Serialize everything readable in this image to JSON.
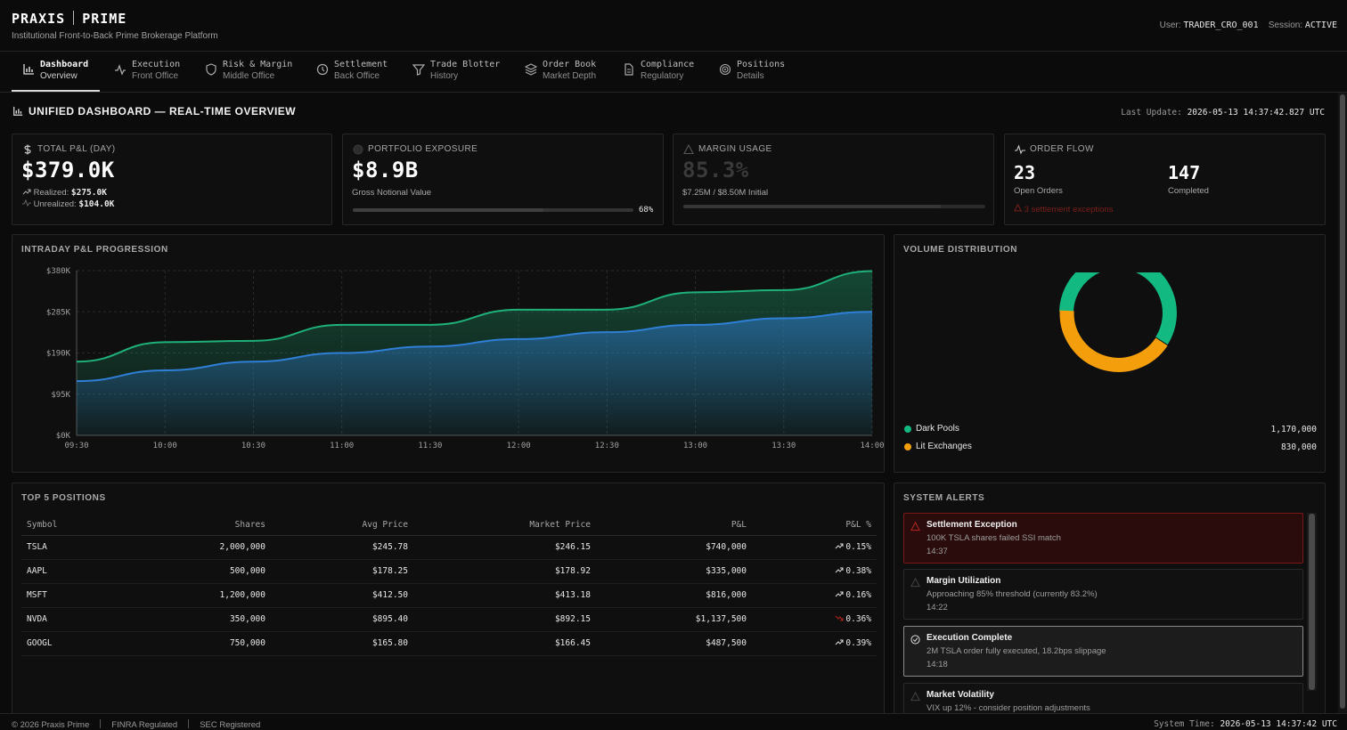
{
  "app": {
    "brand_left": "PRAXIS",
    "brand_right": "PRIME",
    "tagline": "Institutional Front-to-Back Prime Brokerage Platform"
  },
  "user": {
    "user_label": "User:",
    "user_id": "TRADER_CRO_001",
    "session_label": "Session:",
    "session_status": "ACTIVE"
  },
  "nav": [
    {
      "title": "Dashboard",
      "subtitle": "Overview",
      "icon": "bar-chart-icon",
      "active": true
    },
    {
      "title": "Execution",
      "subtitle": "Front Office",
      "icon": "activity-icon"
    },
    {
      "title": "Risk & Margin",
      "subtitle": "Middle Office",
      "icon": "shield-icon"
    },
    {
      "title": "Settlement",
      "subtitle": "Back Office",
      "icon": "clock-icon"
    },
    {
      "title": "Trade Blotter",
      "subtitle": "History",
      "icon": "filter-icon"
    },
    {
      "title": "Order Book",
      "subtitle": "Market Depth",
      "icon": "layers-icon"
    },
    {
      "title": "Compliance",
      "subtitle": "Regulatory",
      "icon": "document-icon"
    },
    {
      "title": "Positions",
      "subtitle": "Details",
      "icon": "target-icon"
    }
  ],
  "dashboard": {
    "title": "UNIFIED DASHBOARD — REAL-TIME OVERVIEW",
    "last_update_label": "Last Update:",
    "last_update": "2026-05-13 14:37:42.827 UTC"
  },
  "kpis": {
    "pnl": {
      "label": "TOTAL P&L (DAY)",
      "value": "$379.0K",
      "realized_label": "Realized:",
      "realized": "$275.0K",
      "unrealized_label": "Unrealized:",
      "unrealized": "$104.0K",
      "icon": "dollar-icon"
    },
    "exposure": {
      "label": "PORTFOLIO EXPOSURE",
      "value": "$8.9B",
      "sub": "Gross Notional Value",
      "pct_label": "68%",
      "pct": 0.68,
      "icon": "globe-icon"
    },
    "margin": {
      "label": "MARGIN USAGE",
      "value": "85.3%",
      "sub": "$7.25M / $8.50M Initial",
      "pct": 0.853,
      "icon": "warning-icon"
    },
    "orderflow": {
      "label": "ORDER FLOW",
      "open": "23",
      "open_label": "Open Orders",
      "completed": "147",
      "completed_label": "Completed",
      "exceptions": "3 settlement exceptions",
      "icon": "activity-icon"
    }
  },
  "chart_data": [
    {
      "type": "area",
      "title": "INTRADAY P&L PROGRESSION",
      "x": [
        "09:30",
        "10:00",
        "10:30",
        "11:00",
        "11:30",
        "12:00",
        "12:30",
        "13:00",
        "13:30",
        "14:00"
      ],
      "ytick_labels": [
        "$380K",
        "$285K",
        "$190K",
        "$95K",
        "$0K"
      ],
      "ylim": [
        0,
        380000
      ],
      "grid": true,
      "series": [
        {
          "values": [
            170000,
            215000,
            218000,
            255000,
            255000,
            290000,
            290000,
            330000,
            335000,
            379000
          ],
          "color": "#1fb07a"
        },
        {
          "values": [
            125000,
            150000,
            170000,
            190000,
            205000,
            222000,
            238000,
            255000,
            270000,
            285000
          ],
          "color": "#2f7fd6"
        }
      ]
    },
    {
      "type": "pie",
      "title": "VOLUME DISTRIBUTION",
      "categories": [
        "Dark Pools",
        "Lit Exchanges"
      ],
      "values": [
        1170000,
        830000
      ],
      "value_labels": [
        "1,170,000",
        "830,000"
      ],
      "colors": [
        "#12b981",
        "#f59e0b"
      ]
    }
  ],
  "positions": {
    "title": "TOP 5 POSITIONS",
    "columns": [
      "Symbol",
      "Shares",
      "Avg Price",
      "Market Price",
      "P&L",
      "P&L %"
    ],
    "rows": [
      {
        "symbol": "TSLA",
        "shares": "2,000,000",
        "avg": "$245.78",
        "mkt": "$246.15",
        "pnl": "$740,000",
        "pct": "0.15%",
        "neg": false
      },
      {
        "symbol": "AAPL",
        "shares": "500,000",
        "avg": "$178.25",
        "mkt": "$178.92",
        "pnl": "$335,000",
        "pct": "0.38%",
        "neg": false
      },
      {
        "symbol": "MSFT",
        "shares": "1,200,000",
        "avg": "$412.50",
        "mkt": "$413.18",
        "pnl": "$816,000",
        "pct": "0.16%",
        "neg": false
      },
      {
        "symbol": "NVDA",
        "shares": "350,000",
        "avg": "$895.40",
        "mkt": "$892.15",
        "pnl": "$1,137,500",
        "pct": "0.36%",
        "neg": true
      },
      {
        "symbol": "GOOGL",
        "shares": "750,000",
        "avg": "$165.80",
        "mkt": "$166.45",
        "pnl": "$487,500",
        "pct": "0.39%",
        "neg": false
      }
    ]
  },
  "alerts": {
    "title": "SYSTEM ALERTS",
    "items": [
      {
        "title": "Settlement Exception",
        "message": "100K TSLA shares failed SSI match",
        "time": "14:37",
        "kind": "critical"
      },
      {
        "title": "Margin Utilization",
        "message": "Approaching 85% threshold (currently 83.2%)",
        "time": "14:22",
        "kind": "warning"
      },
      {
        "title": "Execution Complete",
        "message": "2M TSLA order fully executed, 18.2bps slippage",
        "time": "14:18",
        "kind": "success"
      },
      {
        "title": "Market Volatility",
        "message": "VIX up 12% - consider position adjustments",
        "time": "",
        "kind": "warning"
      }
    ]
  },
  "footer": {
    "copyright": "© 2026 Praxis Prime",
    "reg1": "FINRA Regulated",
    "reg2": "SEC Registered",
    "time_label": "System Time:",
    "time": "2026-05-13 14:37:42 UTC"
  },
  "colors": {
    "positive": "#1fb07a",
    "negative": "#b3261e",
    "blue": "#2f7fd6",
    "orange": "#f59e0b"
  }
}
